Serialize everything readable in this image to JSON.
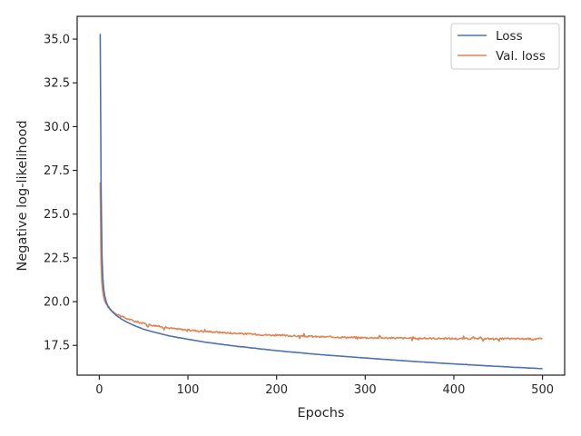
{
  "chart_data": {
    "type": "line",
    "title": "",
    "xlabel": "Epochs",
    "ylabel": "Negative log-likelihood",
    "xlim": [
      -25,
      525
    ],
    "ylim": [
      15.8,
      36.3
    ],
    "xticks": [
      0,
      100,
      200,
      300,
      400,
      500
    ],
    "xtick_labels": [
      "0",
      "100",
      "200",
      "300",
      "400",
      "500"
    ],
    "yticks": [
      17.5,
      20.0,
      22.5,
      25.0,
      27.5,
      30.0,
      32.5,
      35.0
    ],
    "ytick_labels": [
      "17.5",
      "20.0",
      "22.5",
      "25.0",
      "27.5",
      "30.0",
      "32.5",
      "35.0"
    ],
    "grid": false,
    "legend_position": "upper-right",
    "series": [
      {
        "name": "Loss",
        "color": "#4c72b0",
        "x": [
          1,
          2,
          3,
          4,
          5,
          6,
          8,
          10,
          12,
          15,
          20,
          25,
          30,
          40,
          50,
          60,
          80,
          100,
          120,
          150,
          200,
          250,
          300,
          350,
          400,
          450,
          500
        ],
        "y": [
          35.3,
          26.5,
          22.6,
          21.3,
          20.7,
          20.35,
          19.95,
          19.72,
          19.57,
          19.4,
          19.18,
          19.0,
          18.86,
          18.62,
          18.43,
          18.28,
          18.03,
          17.85,
          17.68,
          17.48,
          17.2,
          16.97,
          16.78,
          16.6,
          16.44,
          16.3,
          16.17
        ]
      },
      {
        "name": "Val. loss",
        "color": "#dd8452",
        "x": [
          1,
          2,
          3,
          4,
          5,
          6,
          8,
          10,
          12,
          15,
          20,
          25,
          30,
          40,
          50,
          60,
          80,
          100,
          120,
          150,
          200,
          250,
          300,
          350,
          400,
          450,
          500
        ],
        "y": [
          26.8,
          22.2,
          21.0,
          20.55,
          20.25,
          20.05,
          19.85,
          19.7,
          19.6,
          19.45,
          19.28,
          19.15,
          19.05,
          18.88,
          18.75,
          18.65,
          18.48,
          18.38,
          18.3,
          18.2,
          18.07,
          17.99,
          17.94,
          17.91,
          17.89,
          17.88,
          17.87
        ]
      }
    ]
  }
}
